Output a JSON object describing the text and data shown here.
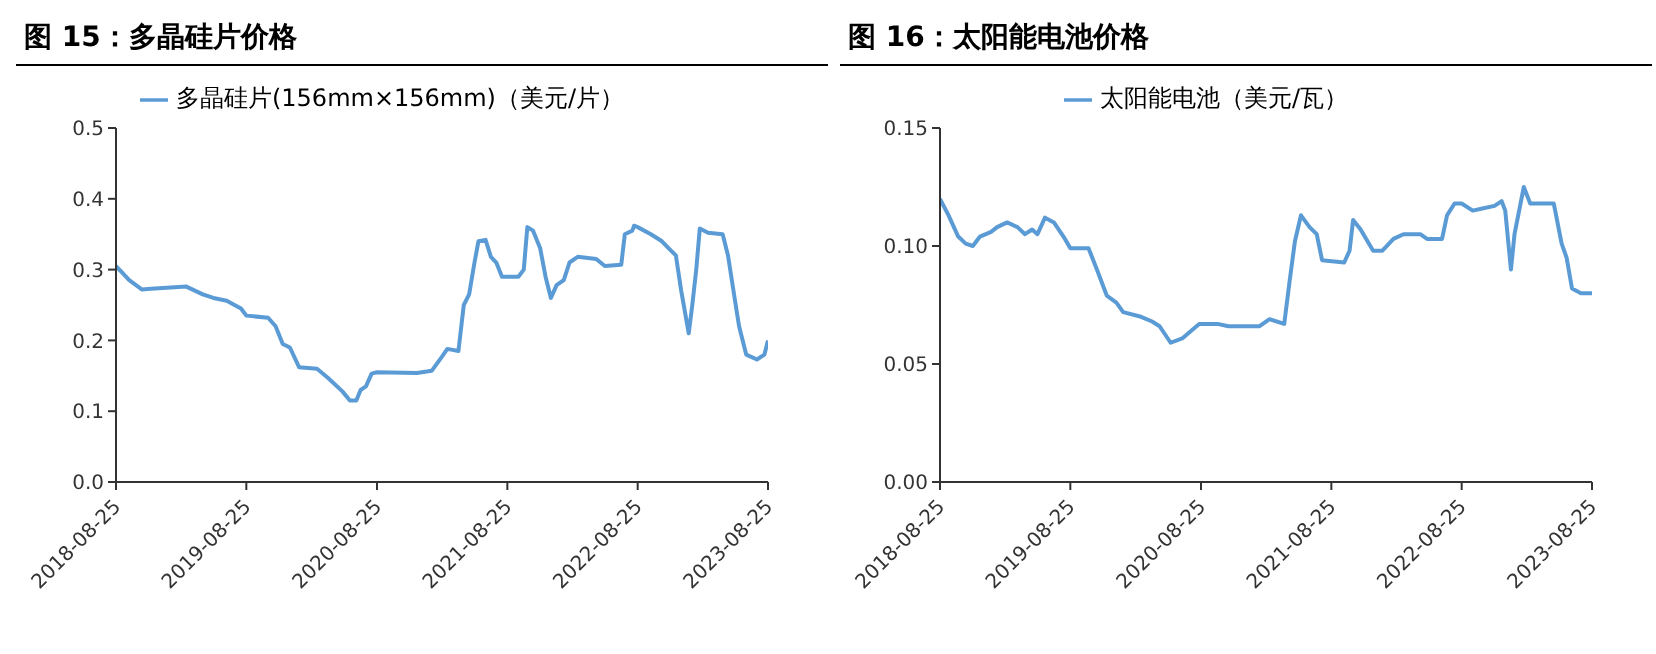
{
  "chart_data": [
    {
      "type": "line",
      "title": "图 15：多晶硅片价格",
      "legend": "top",
      "grid": false,
      "marker": "none",
      "line_style": "solid",
      "xlim": [
        "2018-08-25",
        "2023-08-25"
      ],
      "xticks": [
        "2018-08-25",
        "2019-08-25",
        "2020-08-25",
        "2021-08-25",
        "2022-08-25",
        "2023-08-25"
      ],
      "ylim": [
        0,
        0.5
      ],
      "yticks": [
        {
          "value": 0,
          "label": "0.0"
        },
        {
          "value": 0.1,
          "label": "0.1"
        },
        {
          "value": 0.2,
          "label": "0.2"
        },
        {
          "value": 0.3,
          "label": "0.3"
        },
        {
          "value": 0.4,
          "label": "0.4"
        },
        {
          "value": 0.5,
          "label": "0.5"
        }
      ],
      "series": [
        {
          "name": "多晶硅片(156mm×156mm)（美元/片）",
          "color": "#5b9bd5",
          "x": [
            "2018-08-25",
            "2018-10-01",
            "2018-11-05",
            "2018-12-01",
            "2019-03-10",
            "2019-04-25",
            "2019-05-25",
            "2019-07-01",
            "2019-08-10",
            "2019-08-25",
            "2019-10-25",
            "2019-11-15",
            "2019-12-05",
            "2019-12-25",
            "2020-01-20",
            "2020-03-10",
            "2020-04-10",
            "2020-05-20",
            "2020-06-10",
            "2020-06-28",
            "2020-07-10",
            "2020-07-25",
            "2020-08-10",
            "2020-08-25",
            "2020-12-15",
            "2021-01-25",
            "2021-02-20",
            "2021-03-10",
            "2021-04-10",
            "2021-04-25",
            "2021-05-10",
            "2021-05-25",
            "2021-06-05",
            "2021-06-25",
            "2021-07-10",
            "2021-07-25",
            "2021-08-10",
            "2021-09-25",
            "2021-10-10",
            "2021-10-20",
            "2021-11-05",
            "2021-11-25",
            "2021-12-10",
            "2021-12-25",
            "2022-01-10",
            "2022-01-30",
            "2022-02-15",
            "2022-03-10",
            "2022-05-01",
            "2022-05-25",
            "2022-07-10",
            "2022-07-20",
            "2022-08-10",
            "2022-08-15",
            "2022-08-25",
            "2022-10-01",
            "2022-11-01",
            "2022-11-20",
            "2022-12-10",
            "2022-12-25",
            "2023-01-15",
            "2023-01-25",
            "2023-02-05",
            "2023-02-15",
            "2023-03-10",
            "2023-04-20",
            "2023-05-05",
            "2023-05-25",
            "2023-06-05",
            "2023-06-25",
            "2023-07-25",
            "2023-08-15",
            "2023-08-25"
          ],
          "values": [
            0.305,
            0.285,
            0.272,
            0.273,
            0.276,
            0.265,
            0.26,
            0.256,
            0.245,
            0.235,
            0.232,
            0.22,
            0.195,
            0.19,
            0.162,
            0.16,
            0.147,
            0.128,
            0.115,
            0.115,
            0.13,
            0.135,
            0.153,
            0.155,
            0.154,
            0.157,
            0.175,
            0.188,
            0.185,
            0.25,
            0.265,
            0.31,
            0.34,
            0.342,
            0.318,
            0.31,
            0.29,
            0.29,
            0.3,
            0.36,
            0.355,
            0.33,
            0.29,
            0.26,
            0.278,
            0.285,
            0.31,
            0.318,
            0.315,
            0.305,
            0.307,
            0.35,
            0.355,
            0.362,
            0.36,
            0.35,
            0.34,
            0.33,
            0.32,
            0.27,
            0.21,
            0.25,
            0.3,
            0.358,
            0.352,
            0.35,
            0.32,
            0.255,
            0.22,
            0.18,
            0.173,
            0.18,
            0.2
          ]
        }
      ]
    },
    {
      "type": "line",
      "title": "图 16：太阳能电池价格",
      "legend": "top",
      "grid": false,
      "marker": "none",
      "line_style": "solid",
      "xlim": [
        "2018-08-25",
        "2023-08-25"
      ],
      "xticks": [
        "2018-08-25",
        "2019-08-25",
        "2020-08-25",
        "2021-08-25",
        "2022-08-25",
        "2023-08-25"
      ],
      "ylim": [
        0,
        0.15
      ],
      "yticks": [
        {
          "value": 0,
          "label": "0.00"
        },
        {
          "value": 0.05,
          "label": "0.05"
        },
        {
          "value": 0.1,
          "label": "0.10"
        },
        {
          "value": 0.15,
          "label": "0.15"
        }
      ],
      "series": [
        {
          "name": "太阳能电池（美元/瓦）",
          "color": "#5b9bd5",
          "x": [
            "2018-08-25",
            "2018-09-18",
            "2018-10-15",
            "2018-11-05",
            "2018-11-25",
            "2018-12-15",
            "2019-01-15",
            "2019-02-01",
            "2019-03-01",
            "2019-03-30",
            "2019-04-20",
            "2019-05-10",
            "2019-05-25",
            "2019-06-15",
            "2019-07-10",
            "2019-08-10",
            "2019-08-25",
            "2019-10-15",
            "2019-11-05",
            "2019-12-05",
            "2020-01-01",
            "2020-01-20",
            "2020-03-10",
            "2020-04-10",
            "2020-05-01",
            "2020-06-01",
            "2020-07-05",
            "2020-08-05",
            "2020-08-20",
            "2020-10-10",
            "2020-11-10",
            "2021-02-05",
            "2021-03-05",
            "2021-04-15",
            "2021-04-30",
            "2021-05-15",
            "2021-06-01",
            "2021-06-25",
            "2021-07-15",
            "2021-07-30",
            "2021-09-30",
            "2021-10-15",
            "2021-10-25",
            "2021-11-15",
            "2021-12-20",
            "2022-01-15",
            "2022-02-15",
            "2022-03-15",
            "2022-05-01",
            "2022-05-20",
            "2022-07-01",
            "2022-07-15",
            "2022-08-05",
            "2022-08-25",
            "2022-09-25",
            "2022-10-25",
            "2022-11-25",
            "2022-12-15",
            "2022-12-25",
            "2023-01-10",
            "2023-01-20",
            "2023-02-15",
            "2023-03-05",
            "2023-05-10",
            "2023-06-01",
            "2023-06-15",
            "2023-06-30",
            "2023-07-25",
            "2023-08-25"
          ],
          "values": [
            0.12,
            0.113,
            0.104,
            0.101,
            0.1,
            0.104,
            0.106,
            0.108,
            0.11,
            0.108,
            0.105,
            0.107,
            0.105,
            0.112,
            0.11,
            0.103,
            0.099,
            0.099,
            0.091,
            0.079,
            0.076,
            0.072,
            0.07,
            0.068,
            0.066,
            0.059,
            0.061,
            0.065,
            0.067,
            0.067,
            0.066,
            0.066,
            0.069,
            0.067,
            0.085,
            0.102,
            0.113,
            0.108,
            0.105,
            0.094,
            0.093,
            0.098,
            0.111,
            0.107,
            0.098,
            0.098,
            0.103,
            0.105,
            0.105,
            0.103,
            0.103,
            0.113,
            0.118,
            0.118,
            0.115,
            0.116,
            0.117,
            0.119,
            0.115,
            0.09,
            0.105,
            0.125,
            0.118,
            0.118,
            0.101,
            0.095,
            0.082,
            0.08,
            0.08
          ]
        }
      ]
    }
  ]
}
